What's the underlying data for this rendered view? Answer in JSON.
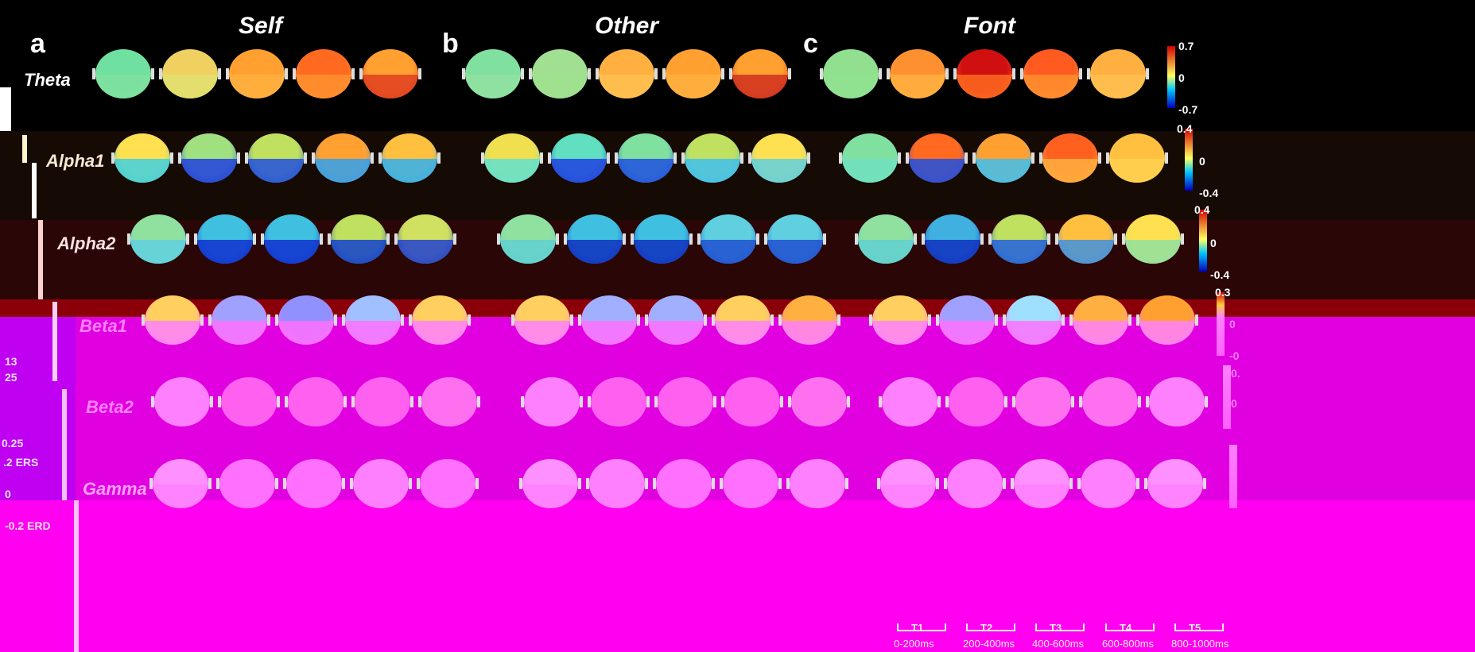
{
  "panels": [
    {
      "letter": "a",
      "title": "Self"
    },
    {
      "letter": "b",
      "title": "Other"
    },
    {
      "letter": "c",
      "title": "Font"
    }
  ],
  "bands": [
    {
      "label": "Theta",
      "scale_max": "0.7",
      "scale_zero": "0",
      "scale_min": "-0.7"
    },
    {
      "label": "Alpha1",
      "scale_max": "0.4",
      "scale_zero": "0",
      "scale_min": "-0.4"
    },
    {
      "label": "Alpha2",
      "scale_max": "0.4",
      "scale_zero": "0",
      "scale_min": "-0.4"
    },
    {
      "label": "Beta1",
      "scale_max": "0.3",
      "scale_zero": "0",
      "scale_min": "-0"
    },
    {
      "label": "Beta2",
      "scale_max": "0.",
      "scale_zero": "0",
      "scale_min": ""
    },
    {
      "label": "Gamma",
      "scale_max": "",
      "scale_zero": "",
      "scale_min": ""
    }
  ],
  "time_windows": [
    {
      "name": "T1",
      "range": "0-200ms"
    },
    {
      "name": "T2",
      "range": "200-400ms"
    },
    {
      "name": "T3",
      "range": "400-600ms"
    },
    {
      "name": "T4",
      "range": "600-800ms"
    },
    {
      "name": "T5",
      "range": "800-1000ms"
    }
  ],
  "left_notes": [
    "13",
    "25",
    "0.25",
    ".2  ERS",
    "0",
    "-0.2  ERD"
  ],
  "colors": {
    "background": "#000000",
    "alpha_bg": "#160a04",
    "alpha2_bg": "#2a0606",
    "beta1_bg": "#8b0008",
    "magenta": "#e000e0",
    "purple": "#c000f0",
    "scale_top": "#d40000",
    "scale_mid": "#ffff60",
    "scale_low": "#00c8ff",
    "scale_bottom": "#0000c0"
  }
}
